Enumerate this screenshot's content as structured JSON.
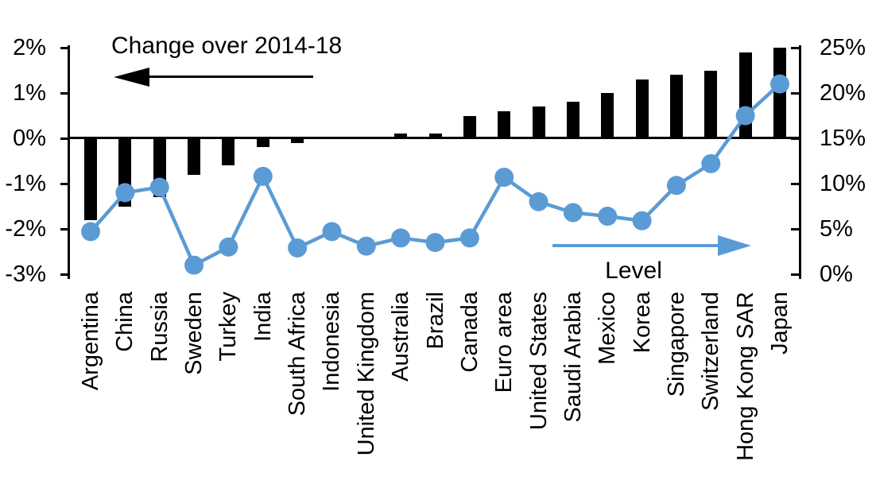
{
  "chart_data": {
    "type": "combo-bar-line",
    "title": "Change over 2014-18",
    "categories": [
      "Argentina",
      "China",
      "Russia",
      "Sweden",
      "Turkey",
      "India",
      "South Africa",
      "Indonesia",
      "United Kingdom",
      "Australia",
      "Brazil",
      "Canada",
      "Euro area",
      "United States",
      "Saudi Arabia",
      "Mexico",
      "Korea",
      "Singapore",
      "Switzerland",
      "Hong Kong SAR",
      "Japan"
    ],
    "series": [
      {
        "name": "Change over 2014-18",
        "type": "bar",
        "axis": "left",
        "color": "#000000",
        "values": [
          -1.8,
          -1.5,
          -1.3,
          -0.8,
          -0.6,
          -0.2,
          -0.1,
          0.0,
          0.0,
          0.1,
          0.1,
          0.5,
          0.6,
          0.7,
          0.8,
          1.0,
          1.3,
          1.4,
          1.5,
          1.9,
          2.0
        ]
      },
      {
        "name": "Level",
        "type": "line",
        "axis": "right",
        "color": "#5b9bd5",
        "values": [
          4.7,
          9.0,
          9.6,
          1.0,
          3.0,
          10.8,
          2.9,
          4.7,
          3.1,
          4.0,
          3.5,
          4.0,
          10.7,
          8.0,
          6.8,
          6.4,
          5.9,
          9.8,
          12.2,
          17.5,
          21.0
        ]
      }
    ],
    "left_axis": {
      "min": -3,
      "max": 2,
      "tick_values": [
        2,
        1,
        0,
        -1,
        -2,
        -3
      ],
      "tick_labels": [
        "2%",
        "1%",
        "0%",
        "-1%",
        "-2%",
        "-3%"
      ]
    },
    "right_axis": {
      "min": 0,
      "max": 25,
      "tick_values": [
        25,
        20,
        15,
        10,
        5,
        0
      ],
      "tick_labels": [
        "25%",
        "20%",
        "15%",
        "10%",
        "5%",
        "0%"
      ]
    },
    "annotations": {
      "bar_series_label": "Change over 2014-18",
      "bar_arrow_direction": "left",
      "line_series_label": "Level",
      "line_arrow_direction": "right"
    },
    "legend_position": "none",
    "grid": "off",
    "colors": {
      "bar": "#000000",
      "line": "#5b9bd5",
      "text": "#000000",
      "background": "#ffffff"
    }
  }
}
